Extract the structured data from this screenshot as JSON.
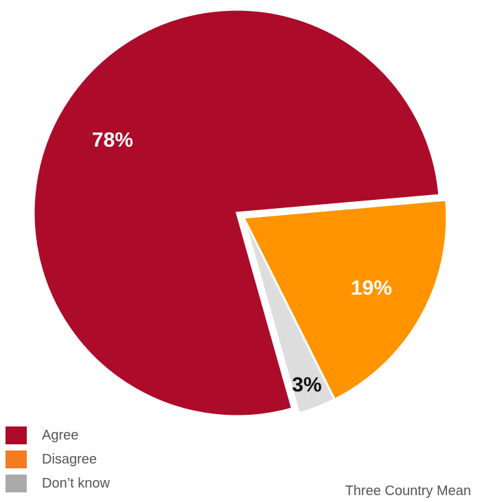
{
  "chart_data": {
    "type": "pie",
    "slices": [
      {
        "label": "Agree",
        "value": 78,
        "display": "78%",
        "color": "#AD0B2A",
        "label_color": "#ffffff"
      },
      {
        "label": "Disagree",
        "value": 19,
        "display": "19%",
        "color": "#FF9400",
        "label_color": "#ffffff"
      },
      {
        "label": "Don’t know",
        "value": 3,
        "display": "3%",
        "color": "#DDDDDD",
        "label_color": "#111111"
      }
    ],
    "legend": [
      {
        "label": "Agree",
        "color": "#AD0B2A"
      },
      {
        "label": "Disagree",
        "color": "#F47B20"
      },
      {
        "label": "Don’t know",
        "color": "#AAAAAA"
      }
    ],
    "legend_position": "bottom-left",
    "note": "Three Country Mean"
  }
}
